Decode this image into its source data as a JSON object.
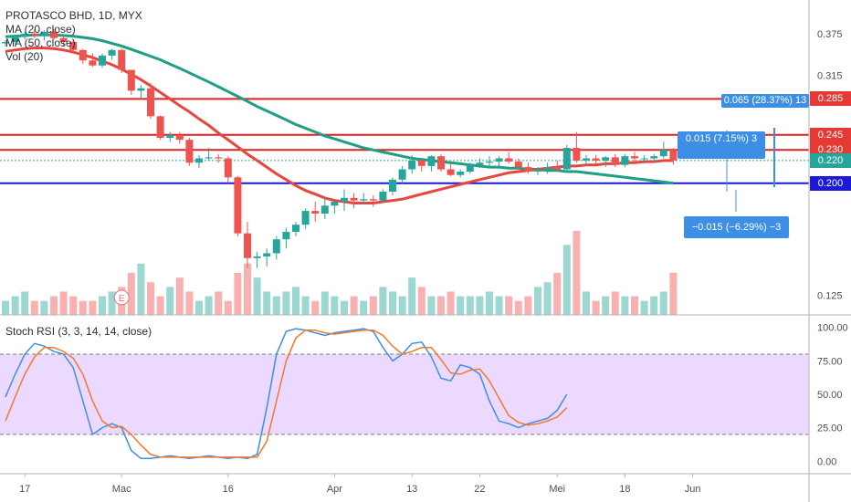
{
  "header": {
    "title": "PROTASCO BHD, 1D, MYX",
    "ma20": "MA (20, close)",
    "ma50": "MA (50, close)",
    "vol": "Vol (20)",
    "stoch": "Stoch RSI (3, 3, 14, 14, close)"
  },
  "colors": {
    "up": "#26a69a",
    "down": "#ef5350",
    "ma20": "#e8453c",
    "ma50": "#1e9e82",
    "hline": "#e02020",
    "blueline": "#1a1ad8",
    "stochK": "#3d8fe6",
    "stochD": "#f2792b",
    "band": "#e5ccff",
    "measure": "#3d8fe6"
  },
  "price_tags": [
    {
      "label": "0.285",
      "value": 0.285,
      "color": "#e53935"
    },
    {
      "label": "0.245",
      "value": 0.245,
      "color": "#e53935"
    },
    {
      "label": "0.230",
      "value": 0.23,
      "color": "#e53935"
    },
    {
      "label": "0.220",
      "value": 0.22,
      "color": "#26a69a"
    },
    {
      "label": "0.200",
      "value": 0.2,
      "color": "#1a1ad8"
    }
  ],
  "measure_boxes": {
    "top": "0.065 (28.37%) 13",
    "mid": "0.015 (7.15%) 3",
    "low": "−0.015 (−6.29%) −3"
  },
  "earnings_marker": "E",
  "chart_data": [
    {
      "type": "candlestick",
      "title": "PROTASCO BHD, 1D, MYX",
      "y_axis": {
        "scale": "log",
        "ticks": [
          0.375,
          0.315,
          0.125
        ],
        "tick_labels": [
          "0.375",
          "0.315",
          "0.125"
        ]
      },
      "x_ticks": [
        "17",
        "Mac",
        "16",
        "Apr",
        "13",
        "22",
        "Mei",
        "18",
        "Jun"
      ],
      "x_tick_index": [
        2,
        12,
        23,
        34,
        42,
        49,
        57,
        64,
        71
      ],
      "horizontal_lines": [
        0.285,
        0.245,
        0.23,
        0.2
      ],
      "last_price_line": 0.22,
      "candles": [
        [
          0.36,
          0.365,
          0.355,
          0.362
        ],
        [
          0.362,
          0.372,
          0.358,
          0.37
        ],
        [
          0.37,
          0.378,
          0.366,
          0.375
        ],
        [
          0.375,
          0.382,
          0.368,
          0.372
        ],
        [
          0.372,
          0.38,
          0.364,
          0.378
        ],
        [
          0.378,
          0.382,
          0.366,
          0.368
        ],
        [
          0.368,
          0.372,
          0.355,
          0.362
        ],
        [
          0.362,
          0.366,
          0.345,
          0.35
        ],
        [
          0.35,
          0.352,
          0.33,
          0.335
        ],
        [
          0.335,
          0.345,
          0.326,
          0.328
        ],
        [
          0.328,
          0.345,
          0.325,
          0.342
        ],
        [
          0.342,
          0.352,
          0.336,
          0.35
        ],
        [
          0.35,
          0.352,
          0.318,
          0.322
        ],
        [
          0.322,
          0.322,
          0.29,
          0.295
        ],
        [
          0.295,
          0.302,
          0.285,
          0.298
        ],
        [
          0.298,
          0.305,
          0.262,
          0.265
        ],
        [
          0.265,
          0.266,
          0.24,
          0.242
        ],
        [
          0.242,
          0.248,
          0.238,
          0.245
        ],
        [
          0.245,
          0.248,
          0.236,
          0.24
        ],
        [
          0.24,
          0.242,
          0.215,
          0.218
        ],
        [
          0.218,
          0.225,
          0.213,
          0.222
        ],
        [
          0.222,
          0.232,
          0.22,
          0.223
        ],
        [
          0.223,
          0.226,
          0.218,
          0.222
        ],
        [
          0.222,
          0.224,
          0.2,
          0.205
        ],
        [
          0.205,
          0.206,
          0.16,
          0.162
        ],
        [
          0.162,
          0.17,
          0.14,
          0.146
        ],
        [
          0.146,
          0.15,
          0.14,
          0.147
        ],
        [
          0.147,
          0.152,
          0.141,
          0.149
        ],
        [
          0.149,
          0.16,
          0.145,
          0.158
        ],
        [
          0.158,
          0.166,
          0.152,
          0.163
        ],
        [
          0.163,
          0.17,
          0.16,
          0.168
        ],
        [
          0.168,
          0.18,
          0.165,
          0.178
        ],
        [
          0.178,
          0.185,
          0.17,
          0.176
        ],
        [
          0.176,
          0.188,
          0.172,
          0.182
        ],
        [
          0.182,
          0.186,
          0.176,
          0.185
        ],
        [
          0.185,
          0.195,
          0.178,
          0.188
        ],
        [
          0.188,
          0.192,
          0.18,
          0.186
        ],
        [
          0.186,
          0.192,
          0.183,
          0.187
        ],
        [
          0.187,
          0.19,
          0.181,
          0.186
        ],
        [
          0.186,
          0.195,
          0.184,
          0.193
        ],
        [
          0.193,
          0.205,
          0.19,
          0.203
        ],
        [
          0.203,
          0.215,
          0.2,
          0.212
        ],
        [
          0.212,
          0.225,
          0.208,
          0.22
        ],
        [
          0.22,
          0.222,
          0.21,
          0.215
        ],
        [
          0.215,
          0.225,
          0.21,
          0.224
        ],
        [
          0.224,
          0.226,
          0.21,
          0.212
        ],
        [
          0.212,
          0.218,
          0.206,
          0.207
        ],
        [
          0.207,
          0.212,
          0.205,
          0.21
        ],
        [
          0.21,
          0.218,
          0.208,
          0.216
        ],
        [
          0.216,
          0.222,
          0.213,
          0.218
        ],
        [
          0.218,
          0.224,
          0.214,
          0.219
        ],
        [
          0.219,
          0.224,
          0.215,
          0.222
        ],
        [
          0.222,
          0.228,
          0.217,
          0.219
        ],
        [
          0.219,
          0.222,
          0.212,
          0.214
        ],
        [
          0.214,
          0.218,
          0.208,
          0.21
        ],
        [
          0.21,
          0.214,
          0.207,
          0.212
        ],
        [
          0.212,
          0.218,
          0.208,
          0.214
        ],
        [
          0.214,
          0.22,
          0.21,
          0.212
        ],
        [
          0.212,
          0.235,
          0.21,
          0.232
        ],
        [
          0.232,
          0.248,
          0.218,
          0.22
        ],
        [
          0.22,
          0.225,
          0.215,
          0.222
        ],
        [
          0.222,
          0.225,
          0.216,
          0.22
        ],
        [
          0.22,
          0.224,
          0.214,
          0.223
        ],
        [
          0.223,
          0.226,
          0.214,
          0.216
        ],
        [
          0.216,
          0.226,
          0.214,
          0.224
        ],
        [
          0.224,
          0.228,
          0.218,
          0.222
        ],
        [
          0.222,
          0.225,
          0.217,
          0.222
        ],
        [
          0.222,
          0.226,
          0.218,
          0.224
        ],
        [
          0.224,
          0.238,
          0.222,
          0.23
        ],
        [
          0.23,
          0.232,
          0.216,
          0.22
        ]
      ],
      "ma20": [
        0.348,
        0.35,
        0.352,
        0.353,
        0.353,
        0.352,
        0.35,
        0.347,
        0.343,
        0.339,
        0.334,
        0.329,
        0.323,
        0.316,
        0.309,
        0.301,
        0.293,
        0.285,
        0.277,
        0.27,
        0.262,
        0.255,
        0.247,
        0.24,
        0.233,
        0.226,
        0.22,
        0.214,
        0.208,
        0.203,
        0.198,
        0.194,
        0.191,
        0.188,
        0.186,
        0.185,
        0.184,
        0.184,
        0.184,
        0.185,
        0.186,
        0.187,
        0.189,
        0.191,
        0.193,
        0.195,
        0.197,
        0.199,
        0.201,
        0.203,
        0.205,
        0.207,
        0.209,
        0.21,
        0.211,
        0.212,
        0.213,
        0.214,
        0.215,
        0.215,
        0.216,
        0.216,
        0.217,
        0.217,
        0.218,
        0.218,
        0.219,
        0.219,
        0.22,
        0.22
      ],
      "ma50": [
        0.37,
        0.371,
        0.372,
        0.373,
        0.373,
        0.373,
        0.372,
        0.371,
        0.369,
        0.367,
        0.364,
        0.36,
        0.356,
        0.351,
        0.346,
        0.341,
        0.336,
        0.33,
        0.324,
        0.318,
        0.312,
        0.306,
        0.3,
        0.294,
        0.288,
        0.282,
        0.276,
        0.271,
        0.266,
        0.261,
        0.256,
        0.252,
        0.248,
        0.244,
        0.241,
        0.238,
        0.235,
        0.232,
        0.23,
        0.228,
        0.226,
        0.224,
        0.222,
        0.221,
        0.22,
        0.219,
        0.218,
        0.217,
        0.216,
        0.215,
        0.214,
        0.214,
        0.213,
        0.213,
        0.212,
        0.212,
        0.211,
        0.211,
        0.21,
        0.21,
        0.209,
        0.208,
        0.207,
        0.206,
        0.205,
        0.204,
        0.203,
        0.202,
        0.201,
        0.2
      ]
    },
    {
      "type": "bar",
      "title": "Vol (20)",
      "values": [
        3,
        4,
        5,
        3,
        3,
        4,
        5,
        4,
        3,
        3,
        4,
        5,
        6,
        9,
        11,
        7,
        4,
        6,
        8,
        5,
        3,
        4,
        5,
        3,
        9,
        11,
        8,
        5,
        4,
        5,
        6,
        4,
        3,
        5,
        4,
        3,
        4,
        3,
        4,
        6,
        5,
        4,
        8,
        6,
        4,
        4,
        5,
        4,
        4,
        4,
        5,
        4,
        4,
        3,
        4,
        6,
        7,
        9,
        15,
        18,
        5,
        3,
        4,
        5,
        4,
        4,
        3,
        4,
        5,
        9
      ]
    },
    {
      "type": "line",
      "title": "Stoch RSI (3, 3, 14, 14, close)",
      "y_ticks": [
        "100.00",
        "75.00",
        "50.00",
        "25.00",
        "0.00"
      ],
      "ylim": [
        -8,
        108
      ],
      "series": [
        {
          "name": "K",
          "values": [
            48,
            65,
            80,
            88,
            86,
            82,
            80,
            70,
            45,
            20,
            25,
            28,
            25,
            8,
            2,
            2,
            3,
            4,
            3,
            2,
            3,
            4,
            3,
            2,
            3,
            2,
            5,
            40,
            80,
            97,
            99,
            98,
            96,
            94,
            96,
            97,
            98,
            99,
            97,
            85,
            75,
            80,
            88,
            89,
            78,
            62,
            60,
            72,
            70,
            65,
            45,
            30,
            28,
            25,
            28,
            30,
            32,
            38,
            50
          ]
        },
        {
          "name": "D",
          "values": [
            30,
            48,
            65,
            78,
            85,
            85,
            82,
            77,
            65,
            45,
            30,
            25,
            26,
            20,
            12,
            5,
            3,
            3,
            3,
            3,
            3,
            3,
            3,
            3,
            3,
            3,
            3,
            15,
            45,
            75,
            92,
            98,
            98,
            96,
            95,
            96,
            97,
            98,
            98,
            94,
            86,
            80,
            82,
            85,
            85,
            76,
            66,
            65,
            68,
            69,
            60,
            47,
            34,
            29,
            27,
            28,
            30,
            33,
            40
          ]
        }
      ]
    }
  ]
}
